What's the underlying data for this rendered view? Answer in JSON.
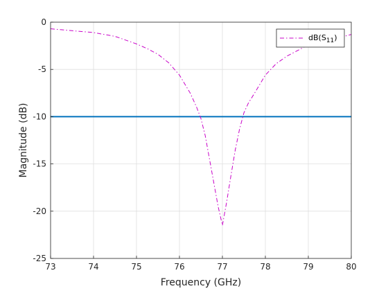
{
  "chart_data": {
    "type": "line",
    "xlabel": "Frequency (GHz)",
    "ylabel": "Magnitude (dB)",
    "xlim": [
      73,
      80
    ],
    "ylim": [
      -25,
      0
    ],
    "xticks": [
      73,
      74,
      75,
      76,
      77,
      78,
      79,
      80
    ],
    "yticks": [
      0,
      -5,
      -10,
      -15,
      -20,
      -25
    ],
    "grid": true,
    "legend_position": "top-right",
    "series": [
      {
        "name": "dB(S11)",
        "legend_base": "dB(S",
        "legend_sub": "11",
        "legend_tail": ")",
        "color": "#c800c8",
        "line_style": "dash-dot",
        "x": [
          73.0,
          73.25,
          73.5,
          73.75,
          74.0,
          74.25,
          74.5,
          74.75,
          75.0,
          75.25,
          75.5,
          75.75,
          76.0,
          76.25,
          76.4,
          76.5,
          76.6,
          76.7,
          76.8,
          76.9,
          77.0,
          77.1,
          77.2,
          77.3,
          77.4,
          77.5,
          77.6,
          77.75,
          78.0,
          78.25,
          78.5,
          78.75,
          79.0,
          79.25,
          79.5,
          79.75,
          80.0
        ],
        "y": [
          -0.7,
          -0.8,
          -0.9,
          -1.0,
          -1.1,
          -1.3,
          -1.5,
          -1.9,
          -2.3,
          -2.8,
          -3.4,
          -4.3,
          -5.6,
          -7.5,
          -9.0,
          -10.2,
          -12.0,
          -14.5,
          -17.0,
          -19.5,
          -21.5,
          -19.0,
          -16.2,
          -13.5,
          -11.3,
          -9.6,
          -8.6,
          -7.5,
          -5.6,
          -4.4,
          -3.6,
          -3.0,
          -2.4,
          -2.1,
          -1.8,
          -1.6,
          -1.3
        ]
      }
    ],
    "reference_lines": [
      {
        "y": -10,
        "color": "#0072bd"
      }
    ]
  }
}
